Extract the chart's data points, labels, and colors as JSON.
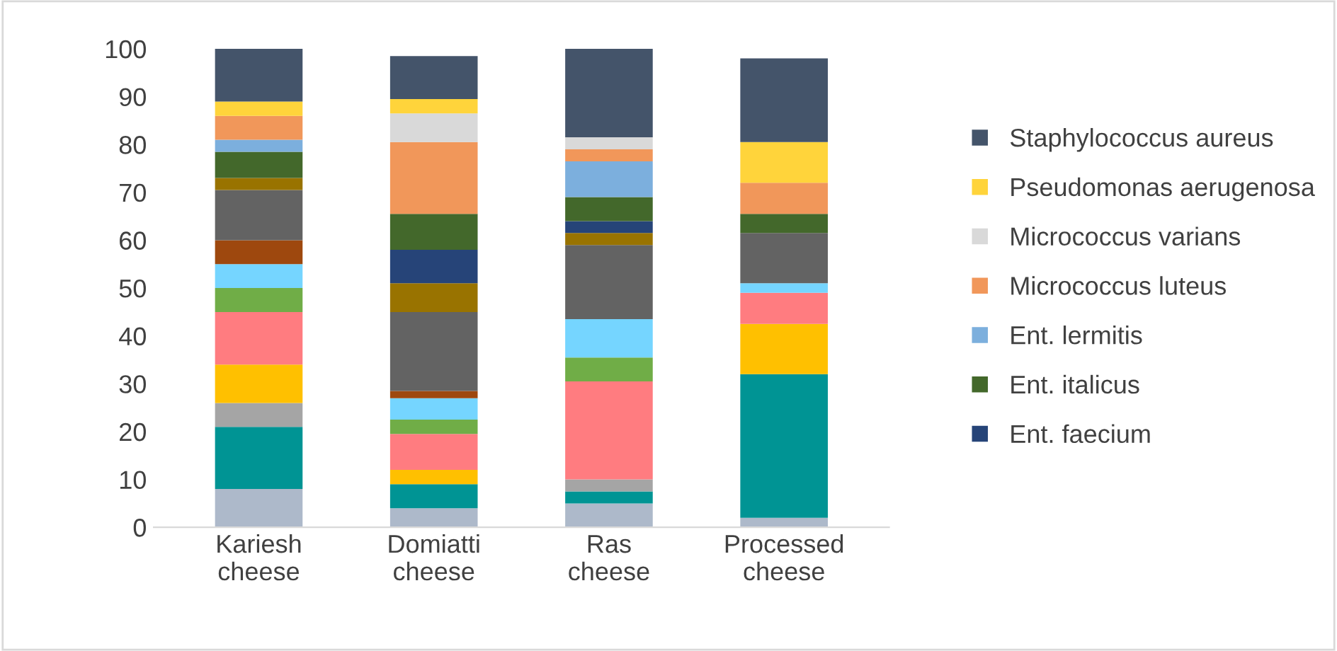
{
  "chart_data": {
    "type": "bar",
    "stacked": true,
    "categories": [
      "Kariesh cheese",
      "Domiatti cheese",
      "Ras cheese",
      "Processed cheese"
    ],
    "series": [
      {
        "color": "#adb9ca",
        "values": [
          8,
          4,
          5,
          2
        ]
      },
      {
        "color": "#009494",
        "values": [
          13,
          5,
          2.5,
          30
        ]
      },
      {
        "color": "#a5a5a5",
        "values": [
          5,
          0,
          2.5,
          0
        ]
      },
      {
        "color": "#ffc000",
        "values": [
          8,
          3,
          0,
          10.5
        ]
      },
      {
        "color": "#ff7c80",
        "values": [
          11,
          7.5,
          20.5,
          6.5
        ]
      },
      {
        "color": "#70ad47",
        "values": [
          5,
          3,
          5,
          0
        ]
      },
      {
        "color": "#75d5ff",
        "values": [
          5,
          4.5,
          8,
          2
        ]
      },
      {
        "color": "#9e480e",
        "values": [
          5,
          1.5,
          0,
          0
        ]
      },
      {
        "color": "#636363",
        "values": [
          10.5,
          16.5,
          15.5,
          10.5
        ]
      },
      {
        "color": "#997300",
        "values": [
          2.5,
          6,
          2.5,
          0
        ]
      },
      {
        "name": "Ent. faecium",
        "color": "#264478",
        "values": [
          0,
          7,
          2.5,
          0
        ]
      },
      {
        "name": "Ent. italicus",
        "color": "#43682b",
        "values": [
          5.5,
          7.5,
          5,
          4
        ]
      },
      {
        "name": "Ent. lermitis",
        "color": "#7cafdd",
        "values": [
          2.5,
          0,
          7.5,
          0
        ]
      },
      {
        "name": "Micrococcus luteus",
        "color": "#f1975a",
        "values": [
          5,
          15,
          2.5,
          6.5
        ]
      },
      {
        "name": "Micrococcus varians",
        "color": "#d9d9d9",
        "values": [
          0,
          6,
          2.5,
          0
        ]
      },
      {
        "name": "Pseudomonas aerugenosa",
        "color": "#ffd43b",
        "values": [
          3,
          3,
          0,
          8.5
        ]
      },
      {
        "name": "Staphylococcus aureus",
        "color": "#44546a",
        "values": [
          11,
          9,
          18.5,
          17.5
        ]
      }
    ],
    "ylim": [
      0,
      100
    ],
    "yticks": [
      0,
      10,
      20,
      30,
      40,
      50,
      60,
      70,
      80,
      90,
      100
    ],
    "grid": false,
    "legend": "right"
  }
}
